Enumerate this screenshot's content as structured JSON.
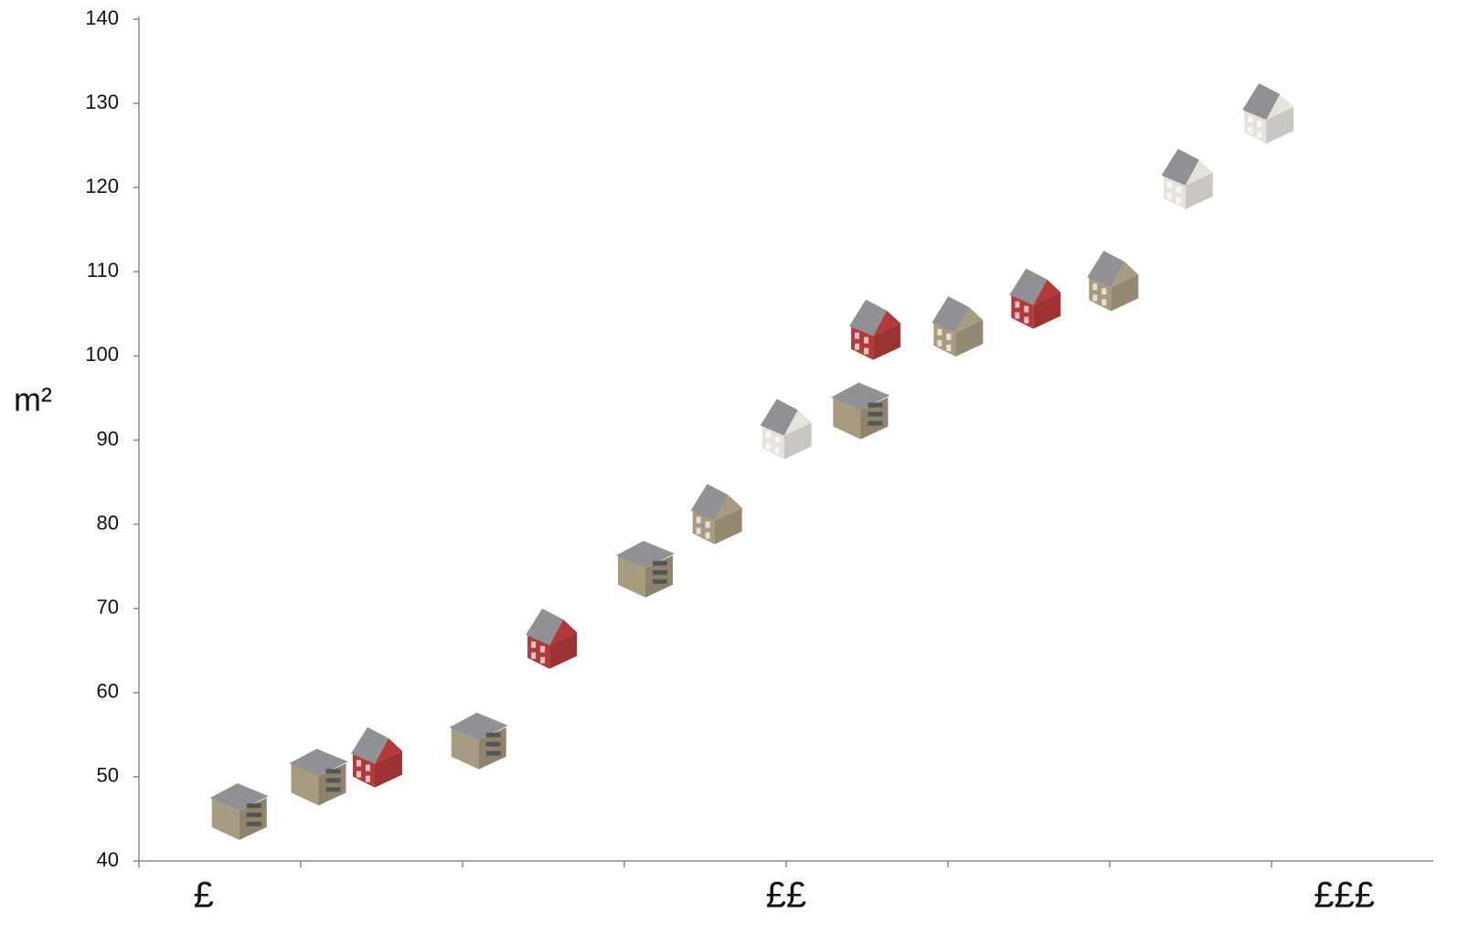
{
  "chart_data": {
    "type": "scatter",
    "ylabel": "m²",
    "x": [
      0.62,
      1.11,
      1.48,
      2.1,
      2.56,
      3.13,
      3.58,
      4.01,
      4.46,
      4.56,
      5.07,
      5.55,
      6.03,
      6.49,
      6.99
    ],
    "values": [
      46.4,
      50.5,
      52.2,
      54.8,
      66.3,
      75.2,
      81.1,
      91.2,
      94,
      103,
      103.4,
      106.7,
      108.8,
      120.9,
      128.7
    ],
    "colors": [
      "#a99b7f",
      "#a99b7f",
      "#b23a3a",
      "#a99b7f",
      "#b23a3a",
      "#a99b7f",
      "#a99b7f",
      "#e6e3dd",
      "#a99b7f",
      "#b23a3a",
      "#a99b7f",
      "#b23a3a",
      "#a99b7f",
      "#e6e3dd",
      "#e6e3dd"
    ],
    "markers": [
      "block",
      "block",
      "house",
      "block",
      "house",
      "block",
      "house",
      "house",
      "block",
      "house",
      "house",
      "house",
      "house",
      "house",
      "house"
    ],
    "xlim": [
      0,
      8
    ],
    "xticks": [
      0,
      1,
      2,
      3,
      4,
      5,
      6,
      7
    ],
    "xlabels": [
      {
        "value": 0.4,
        "label": "£"
      },
      {
        "value": 4,
        "label": "££"
      },
      {
        "value": 7.45,
        "label": "£££"
      }
    ],
    "ylim": [
      40,
      140
    ],
    "yticks": [
      40,
      50,
      60,
      70,
      80,
      90,
      100,
      110,
      120,
      130,
      140
    ]
  }
}
